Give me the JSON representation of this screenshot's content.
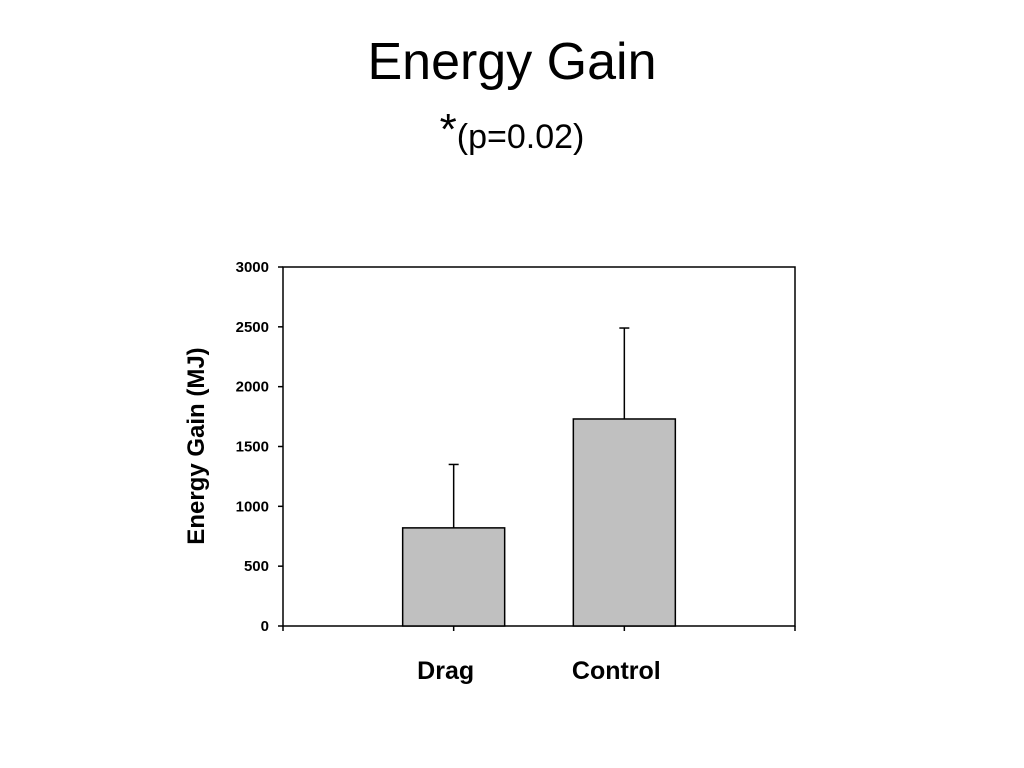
{
  "slide": {
    "title": "Energy Gain",
    "significance_mark": "*",
    "p_value": "(p=0.02)"
  },
  "chart_data": {
    "type": "bar",
    "categories": [
      "Drag",
      "Control"
    ],
    "values": [
      820,
      1730
    ],
    "error_upper": [
      1350,
      2490
    ],
    "ylabel": "Energy Gain (MJ)",
    "xlabel": "",
    "ylim": [
      0,
      3000
    ],
    "yticks": [
      0,
      500,
      1000,
      1500,
      2000,
      2500,
      3000
    ],
    "grid": false,
    "bar_color": "#c0c0c0",
    "edge_color": "#000000"
  }
}
